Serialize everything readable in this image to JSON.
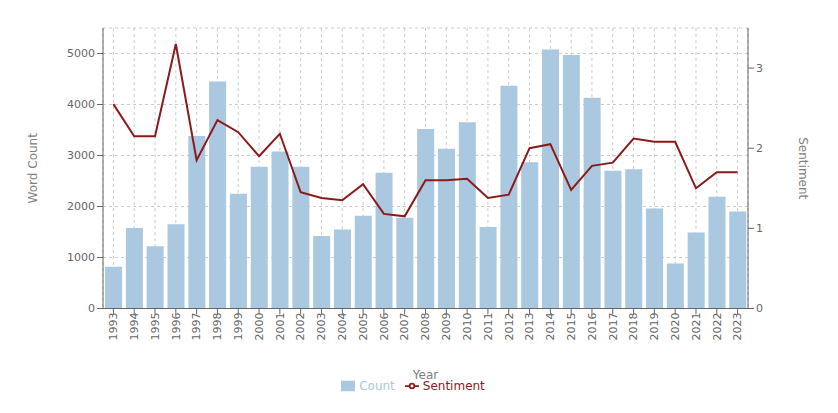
{
  "chart_data": {
    "type": "bar",
    "xlabel": "Year",
    "ylabel": "Word Count",
    "y2label": "Sentiment",
    "categories": [
      "1993",
      "1994",
      "1995",
      "1996",
      "1997",
      "1998",
      "1999",
      "2000",
      "2001",
      "2002",
      "2003",
      "2004",
      "2005",
      "2006",
      "2007",
      "2008",
      "2009",
      "2010",
      "2011",
      "2012",
      "2013",
      "2014",
      "2015",
      "2016",
      "2017",
      "2018",
      "2019",
      "2020",
      "2021",
      "2022",
      "2023"
    ],
    "series": [
      {
        "name": "Count",
        "type": "bar",
        "color": "#aac8e0",
        "values": [
          820,
          1580,
          1220,
          1650,
          3380,
          4450,
          2250,
          2780,
          3080,
          2780,
          1420,
          1550,
          1820,
          2660,
          1780,
          3520,
          3130,
          3650,
          1600,
          4370,
          2870,
          5080,
          4970,
          4130,
          2700,
          2730,
          1960,
          880,
          1490,
          2190,
          1900
        ]
      },
      {
        "name": "Sentiment",
        "type": "line",
        "color": "#8b1a1a",
        "axis": "y2",
        "values": [
          2.55,
          2.15,
          2.15,
          3.3,
          1.85,
          2.35,
          2.2,
          1.9,
          2.18,
          1.45,
          1.38,
          1.35,
          1.55,
          1.18,
          1.15,
          1.6,
          1.6,
          1.62,
          1.38,
          1.42,
          2.0,
          2.05,
          1.48,
          1.78,
          1.82,
          2.12,
          2.08,
          2.08,
          1.5,
          1.7,
          1.7
        ]
      }
    ],
    "ylim": [
      0,
      5500
    ],
    "yticks": [
      0,
      1000,
      2000,
      3000,
      4000,
      5000
    ],
    "y2lim": [
      0,
      3.5
    ],
    "y2ticks": [
      0,
      1,
      2,
      3
    ],
    "grid": true,
    "legend": "bottom"
  }
}
